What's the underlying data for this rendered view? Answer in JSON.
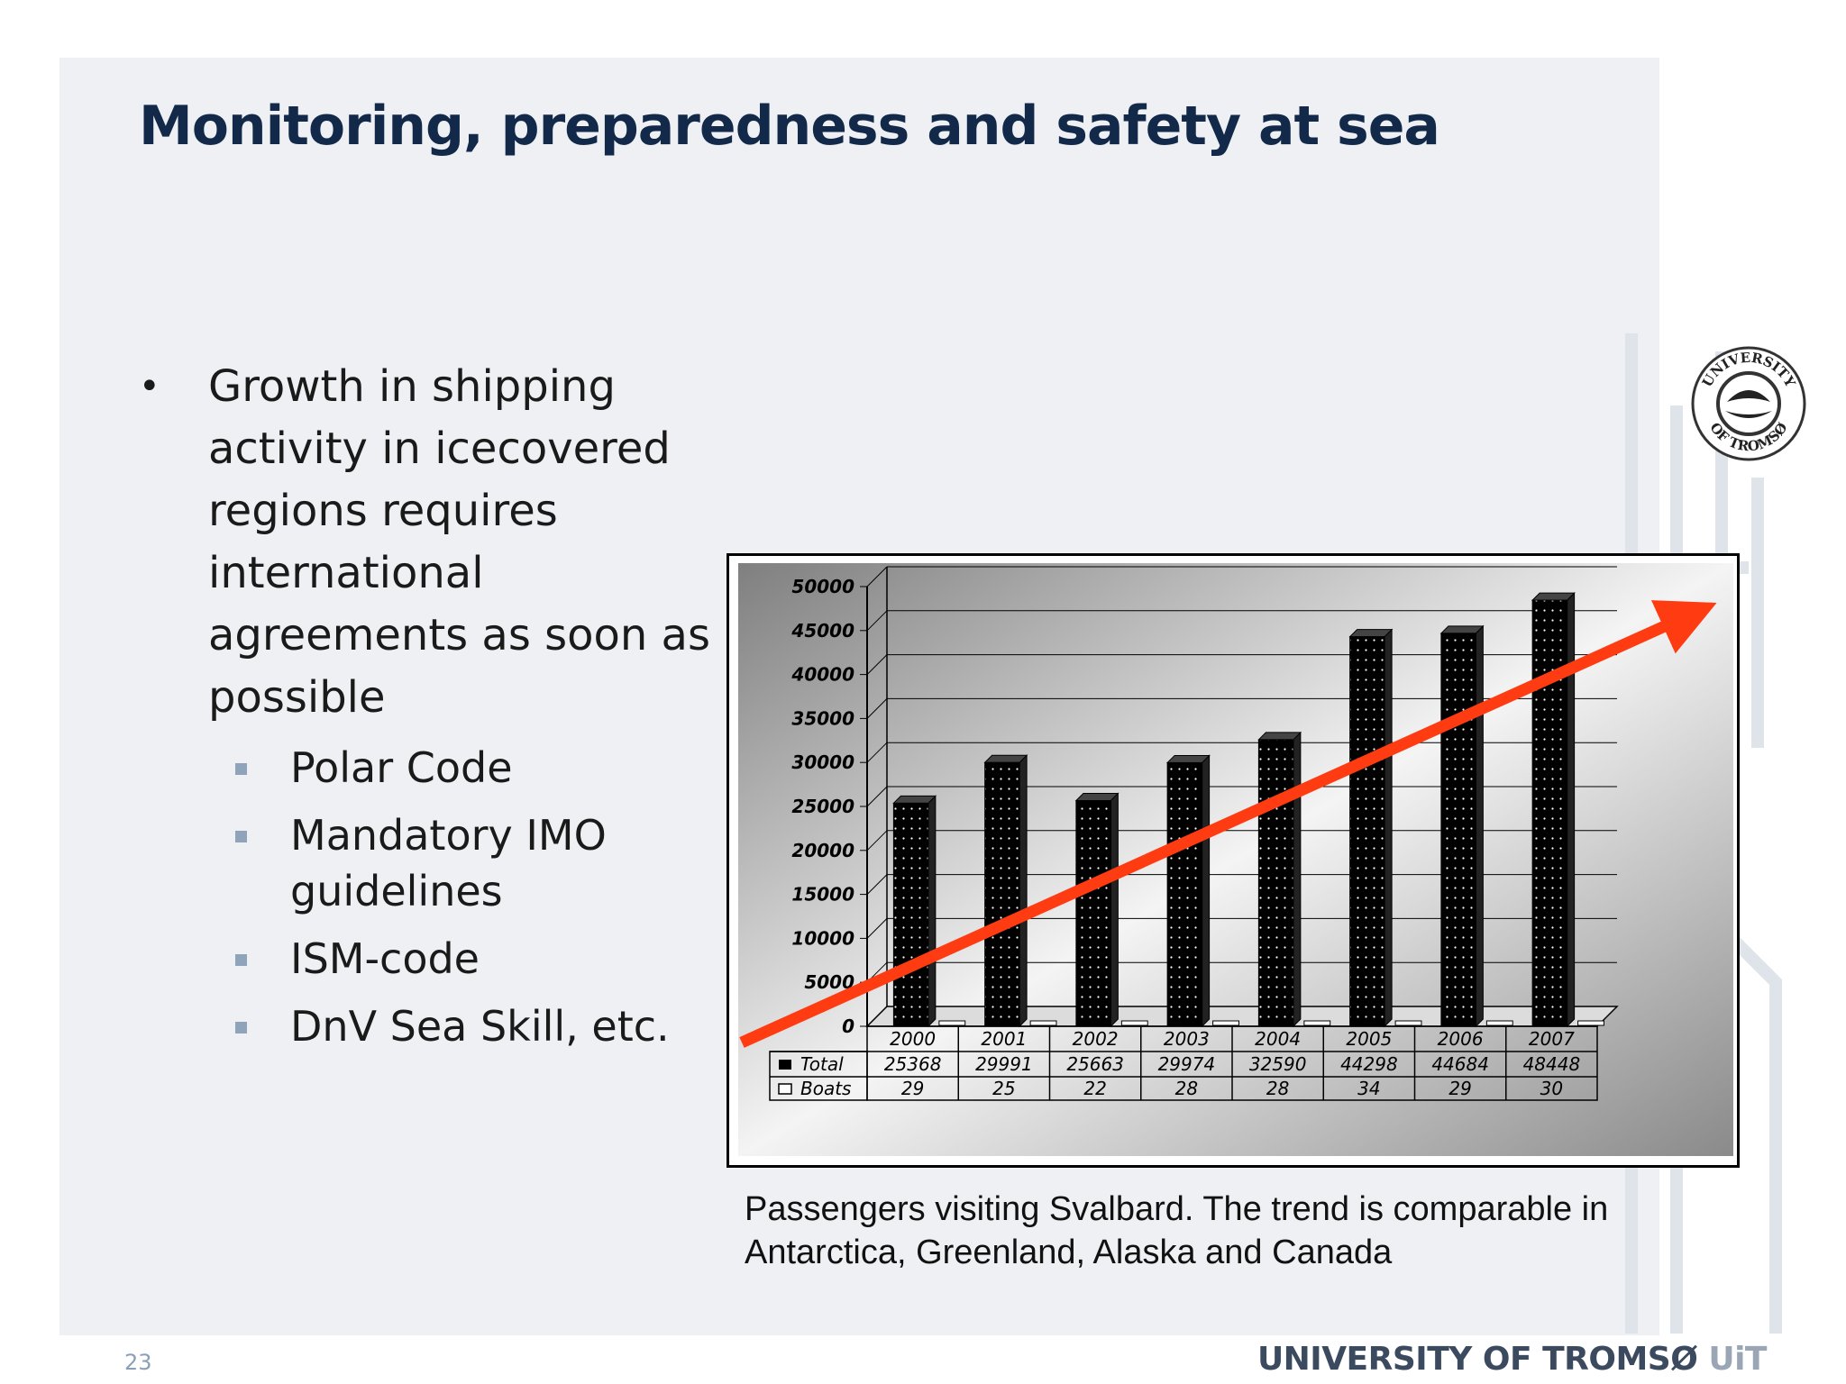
{
  "slide": {
    "title": "Monitoring, preparedness and safety at sea",
    "bullet": "Growth in shipping activity in icecovered regions requires international agreements as soon as possible",
    "sub_bullets": [
      "Polar Code",
      "Mandatory IMO guidelines",
      "ISM-code",
      "DnV Sea Skill, etc."
    ],
    "caption": "Passengers visiting Svalbard. The trend is comparable in Antarctica, Greenland, Alaska and Canada",
    "page_number": "23",
    "footer_brand": "UNIVERSITY OF TROMSØ",
    "footer_brand_short": "UiT",
    "seal_top": "UNIVERSITY",
    "seal_bottom": "OF TROMSØ"
  },
  "colors": {
    "title": "#12294a",
    "bullet_marker": "#8fa3bb",
    "trend_arrow": "#ff3b12",
    "bars": "#000000",
    "panel": "#eef0f3"
  },
  "chart_data": {
    "type": "bar",
    "categories": [
      "2000",
      "2001",
      "2002",
      "2003",
      "2004",
      "2005",
      "2006",
      "2007"
    ],
    "series": [
      {
        "name": "Total",
        "values": [
          25368,
          29991,
          25663,
          29974,
          32590,
          44298,
          44684,
          48448
        ]
      },
      {
        "name": "Boats",
        "values": [
          29,
          25,
          22,
          28,
          28,
          34,
          29,
          30
        ]
      }
    ],
    "y_ticks": [
      "50000",
      "45000",
      "40000",
      "35000",
      "30000",
      "25000",
      "20000",
      "15000",
      "10000",
      "5000",
      "0"
    ],
    "ylim": [
      0,
      50000
    ],
    "grid": true,
    "legend": "data-table-below",
    "annotation": "red trend arrow rising left to right"
  }
}
